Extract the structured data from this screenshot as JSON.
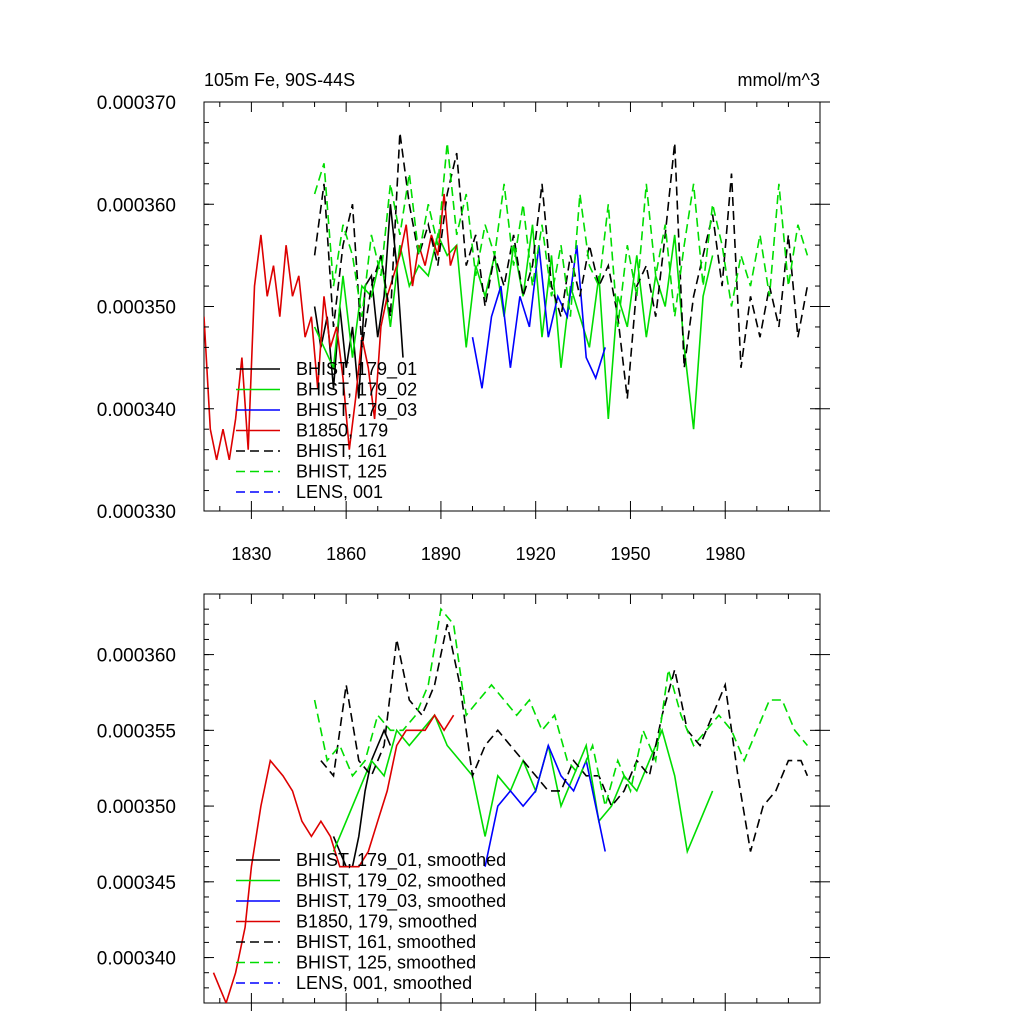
{
  "figure": {
    "background": "#ffffff"
  },
  "chart_data": [
    {
      "type": "line",
      "title": "105m Fe, 90S-44S",
      "units": "mmol/m^3",
      "xlabel": "",
      "ylabel": "",
      "xlim": [
        1815,
        2010
      ],
      "ylim": [
        0.00033,
        0.00037
      ],
      "xticks": [
        1830,
        1860,
        1890,
        1920,
        1950,
        1980
      ],
      "xtick_labels": [
        "1830",
        "1860",
        "1890",
        "1920",
        "1950",
        "1980"
      ],
      "yticks": [
        0.00033,
        0.00034,
        0.00035,
        0.00036,
        0.00037
      ],
      "ytick_labels": [
        "0.000330",
        "0.000340",
        "0.000350",
        "0.000360",
        "0.000370"
      ],
      "legend_position": "lower-left",
      "series": [
        {
          "name": "BHIST, 179_01",
          "color": "#000000",
          "dash": false,
          "x": [
            1850,
            1852,
            1854,
            1856,
            1858,
            1860,
            1862,
            1864,
            1866,
            1868,
            1870,
            1872,
            1874,
            1876,
            1878
          ],
          "y": [
            0.00035,
            0.000346,
            0.000349,
            0.000342,
            0.00035,
            0.000344,
            0.000348,
            0.000341,
            0.000352,
            0.000353,
            0.000347,
            0.000351,
            0.00036,
            0.000354,
            0.000345
          ]
        },
        {
          "name": "BHIST, 179_02",
          "color": "#00dd00",
          "dash": false,
          "x": [
            1850,
            1853,
            1856,
            1859,
            1862,
            1865,
            1868,
            1871,
            1874,
            1877,
            1880,
            1883,
            1886,
            1889,
            1892,
            1895,
            1898,
            1901,
            1904,
            1907,
            1910,
            1913,
            1916,
            1919,
            1922,
            1925,
            1928,
            1931,
            1934,
            1937,
            1940,
            1943,
            1946,
            1949,
            1952,
            1955,
            1958,
            1961,
            1964,
            1967,
            1970,
            1973,
            1976
          ],
          "y": [
            0.000348,
            0.000346,
            0.000344,
            0.000353,
            0.000345,
            0.000352,
            0.000351,
            0.000355,
            0.000348,
            0.000356,
            0.000352,
            0.000354,
            0.000353,
            0.000357,
            0.000355,
            0.000356,
            0.000346,
            0.000354,
            0.000351,
            0.000355,
            0.000349,
            0.000356,
            0.000351,
            0.000358,
            0.000347,
            0.000355,
            0.000344,
            0.000352,
            0.000349,
            0.000346,
            0.000353,
            0.000339,
            0.000351,
            0.000348,
            0.000355,
            0.000347,
            0.000353,
            0.00035,
            0.000357,
            0.000346,
            0.000338,
            0.000351,
            0.000355
          ]
        },
        {
          "name": "BHIST, 179_03",
          "color": "#0000ff",
          "dash": false,
          "x": [
            1900,
            1903,
            1906,
            1909,
            1912,
            1915,
            1918,
            1921,
            1924,
            1927,
            1930,
            1933,
            1936,
            1939,
            1942
          ],
          "y": [
            0.000347,
            0.000342,
            0.000349,
            0.000352,
            0.000344,
            0.000351,
            0.000348,
            0.000356,
            0.000347,
            0.000351,
            0.000349,
            0.000356,
            0.000345,
            0.000343,
            0.000346
          ]
        },
        {
          "name": "B1850, 179",
          "color": "#dd0000",
          "dash": false,
          "x": [
            1815,
            1817,
            1819,
            1821,
            1823,
            1825,
            1827,
            1829,
            1831,
            1833,
            1835,
            1837,
            1839,
            1841,
            1843,
            1845,
            1847,
            1849,
            1851,
            1853,
            1855,
            1857,
            1859,
            1861,
            1863,
            1865,
            1867,
            1869,
            1871,
            1873,
            1875,
            1877,
            1879,
            1881,
            1883,
            1885,
            1887,
            1889,
            1891,
            1893,
            1895
          ],
          "y": [
            0.000349,
            0.000338,
            0.000335,
            0.000338,
            0.000335,
            0.000339,
            0.000345,
            0.000336,
            0.000352,
            0.000357,
            0.000351,
            0.000354,
            0.000349,
            0.000356,
            0.000351,
            0.000353,
            0.000347,
            0.000349,
            0.000342,
            0.000351,
            0.000346,
            0.000348,
            0.000343,
            0.000336,
            0.000341,
            0.000347,
            0.000344,
            0.000339,
            0.000348,
            0.000351,
            0.000353,
            0.000355,
            0.000358,
            0.000352,
            0.000356,
            0.000354,
            0.000357,
            0.000355,
            0.000361,
            0.000354,
            0.000356
          ]
        },
        {
          "name": "BHIST, 161",
          "color": "#000000",
          "dash": true,
          "x": [
            1850,
            1853,
            1856,
            1859,
            1862,
            1865,
            1868,
            1871,
            1874,
            1877,
            1880,
            1883,
            1886,
            1889,
            1892,
            1895,
            1898,
            1901,
            1904,
            1907,
            1910,
            1913,
            1916,
            1919,
            1922,
            1925,
            1928,
            1931,
            1934,
            1937,
            1940,
            1943,
            1946,
            1949,
            1952,
            1955,
            1958,
            1961,
            1964,
            1967,
            1970,
            1973,
            1976,
            1979,
            1982,
            1985,
            1988,
            1991,
            1994,
            1997,
            2000,
            2003,
            2006
          ],
          "y": [
            0.000355,
            0.000362,
            0.000348,
            0.000356,
            0.00036,
            0.000346,
            0.000352,
            0.000355,
            0.000349,
            0.000367,
            0.00036,
            0.000355,
            0.000358,
            0.000354,
            0.000361,
            0.000365,
            0.000354,
            0.000357,
            0.00035,
            0.000355,
            0.000352,
            0.000357,
            0.000351,
            0.000354,
            0.000362,
            0.000352,
            0.000349,
            0.000355,
            0.000351,
            0.000356,
            0.000352,
            0.000354,
            0.000349,
            0.000341,
            0.000352,
            0.000354,
            0.000349,
            0.000357,
            0.000366,
            0.000344,
            0.000351,
            0.000355,
            0.000359,
            0.000352,
            0.000363,
            0.000344,
            0.000351,
            0.000347,
            0.000352,
            0.000348,
            0.000357,
            0.000347,
            0.000352
          ]
        },
        {
          "name": "BHIST, 125",
          "color": "#00dd00",
          "dash": true,
          "x": [
            1850,
            1853,
            1856,
            1859,
            1862,
            1865,
            1868,
            1871,
            1874,
            1877,
            1880,
            1883,
            1886,
            1889,
            1892,
            1895,
            1898,
            1901,
            1904,
            1907,
            1910,
            1913,
            1916,
            1919,
            1922,
            1925,
            1928,
            1931,
            1934,
            1937,
            1940,
            1943,
            1946,
            1949,
            1952,
            1955,
            1958,
            1961,
            1964,
            1967,
            1970,
            1973,
            1976,
            1979,
            1982,
            1985,
            1988,
            1991,
            1994,
            1997,
            2000,
            2003,
            2006
          ],
          "y": [
            0.000361,
            0.000364,
            0.000352,
            0.000358,
            0.000355,
            0.000349,
            0.000357,
            0.000353,
            0.000362,
            0.000357,
            0.000363,
            0.000355,
            0.00036,
            0.000356,
            0.000366,
            0.000357,
            0.000361,
            0.000353,
            0.000358,
            0.000355,
            0.000362,
            0.000354,
            0.00036,
            0.000352,
            0.000358,
            0.000351,
            0.000356,
            0.000349,
            0.000361,
            0.000354,
            0.000352,
            0.00036,
            0.000348,
            0.000356,
            0.000351,
            0.000362,
            0.000353,
            0.000358,
            0.000349,
            0.000356,
            0.000362,
            0.000352,
            0.00036,
            0.000356,
            0.00035,
            0.000355,
            0.000352,
            0.000357,
            0.000351,
            0.000362,
            0.000352,
            0.000358,
            0.000355
          ]
        },
        {
          "name": "LENS, 001",
          "color": "#0000ff",
          "dash": true,
          "x": [],
          "y": []
        }
      ]
    },
    {
      "type": "line",
      "title": "",
      "xlabel": "",
      "ylabel": "",
      "xlim": [
        1815,
        2010
      ],
      "ylim": [
        0.000337,
        0.000364
      ],
      "xticks": [
        1830,
        1860,
        1890,
        1920,
        1950,
        1980
      ],
      "xtick_labels": [],
      "yticks": [
        0.00034,
        0.000345,
        0.00035,
        0.000355,
        0.00036
      ],
      "ytick_labels": [
        "0.000340",
        "0.000345",
        "0.000350",
        "0.000355",
        "0.000360"
      ],
      "legend_position": "lower-left",
      "series": [
        {
          "name": "BHIST, 179_01, smoothed",
          "color": "#000000",
          "dash": false,
          "x": [
            1856,
            1858,
            1860,
            1862,
            1864,
            1866,
            1868,
            1870,
            1872,
            1874
          ],
          "y": [
            0.000348,
            0.000347,
            0.000346,
            0.000346,
            0.000348,
            0.000351,
            0.000353,
            0.000354,
            0.000355,
            0.000354
          ]
        },
        {
          "name": "BHIST, 179_02, smoothed",
          "color": "#00dd00",
          "dash": false,
          "x": [
            1856,
            1860,
            1864,
            1868,
            1872,
            1876,
            1880,
            1884,
            1888,
            1892,
            1896,
            1900,
            1904,
            1908,
            1912,
            1916,
            1920,
            1924,
            1928,
            1932,
            1936,
            1940,
            1944,
            1948,
            1952,
            1956,
            1960,
            1964,
            1968,
            1972,
            1976
          ],
          "y": [
            0.000347,
            0.000349,
            0.000351,
            0.000353,
            0.000352,
            0.000355,
            0.000354,
            0.000355,
            0.000356,
            0.000354,
            0.000353,
            0.000352,
            0.000348,
            0.000352,
            0.000351,
            0.000353,
            0.000351,
            0.000354,
            0.00035,
            0.000352,
            0.000354,
            0.000349,
            0.00035,
            0.000352,
            0.000351,
            0.000353,
            0.000355,
            0.000352,
            0.000347,
            0.000349,
            0.000351
          ]
        },
        {
          "name": "BHIST, 179_03, smoothed",
          "color": "#0000ff",
          "dash": false,
          "x": [
            1904,
            1908,
            1912,
            1916,
            1920,
            1924,
            1928,
            1932,
            1936,
            1940,
            1942
          ],
          "y": [
            0.000346,
            0.00035,
            0.000351,
            0.00035,
            0.000351,
            0.000354,
            0.000352,
            0.000351,
            0.000353,
            0.000349,
            0.000347
          ]
        },
        {
          "name": "B1850, 179, smoothed",
          "color": "#dd0000",
          "dash": false,
          "x": [
            1818,
            1820,
            1822,
            1825,
            1828,
            1830,
            1833,
            1836,
            1840,
            1843,
            1846,
            1849,
            1852,
            1855,
            1858,
            1861,
            1864,
            1867,
            1870,
            1873,
            1876,
            1879,
            1882,
            1885,
            1888,
            1891,
            1894
          ],
          "y": [
            0.000339,
            0.000338,
            0.000337,
            0.000339,
            0.000342,
            0.000346,
            0.00035,
            0.000353,
            0.000352,
            0.000351,
            0.000349,
            0.000348,
            0.000349,
            0.000348,
            0.000346,
            0.000346,
            0.000346,
            0.000347,
            0.000349,
            0.000351,
            0.000354,
            0.000355,
            0.000355,
            0.000355,
            0.000356,
            0.000355,
            0.000356
          ]
        },
        {
          "name": "BHIST, 161, smoothed",
          "color": "#000000",
          "dash": true,
          "x": [
            1852,
            1856,
            1860,
            1864,
            1868,
            1872,
            1876,
            1880,
            1884,
            1888,
            1892,
            1896,
            1900,
            1904,
            1908,
            1912,
            1916,
            1920,
            1924,
            1928,
            1932,
            1936,
            1940,
            1944,
            1948,
            1952,
            1956,
            1960,
            1964,
            1968,
            1972,
            1976,
            1980,
            1984,
            1988,
            1992,
            1996,
            2000,
            2004,
            2006
          ],
          "y": [
            0.000353,
            0.000352,
            0.000358,
            0.000353,
            0.000352,
            0.000354,
            0.000361,
            0.000357,
            0.000356,
            0.000358,
            0.000362,
            0.000358,
            0.000352,
            0.000354,
            0.000355,
            0.000354,
            0.000353,
            0.000352,
            0.000351,
            0.000351,
            0.000353,
            0.000352,
            0.000352,
            0.00035,
            0.000351,
            0.000353,
            0.000352,
            0.000356,
            0.000359,
            0.000355,
            0.000354,
            0.000356,
            0.000358,
            0.000352,
            0.000347,
            0.00035,
            0.000351,
            0.000353,
            0.000353,
            0.000352
          ]
        },
        {
          "name": "BHIST, 125, smoothed",
          "color": "#00dd00",
          "dash": true,
          "x": [
            1850,
            1854,
            1858,
            1862,
            1866,
            1870,
            1874,
            1878,
            1882,
            1886,
            1890,
            1894,
            1898,
            1902,
            1906,
            1910,
            1914,
            1918,
            1922,
            1926,
            1930,
            1934,
            1938,
            1942,
            1946,
            1950,
            1954,
            1958,
            1962,
            1966,
            1970,
            1974,
            1978,
            1982,
            1986,
            1990,
            1994,
            1998,
            2002,
            2006
          ],
          "y": [
            0.000357,
            0.000353,
            0.000354,
            0.000352,
            0.000353,
            0.000356,
            0.000355,
            0.000355,
            0.000356,
            0.000358,
            0.000363,
            0.000362,
            0.000356,
            0.000357,
            0.000358,
            0.000357,
            0.000356,
            0.000357,
            0.000355,
            0.000356,
            0.000353,
            0.000352,
            0.000354,
            0.00035,
            0.000353,
            0.000351,
            0.000355,
            0.000353,
            0.000359,
            0.000356,
            0.000354,
            0.000355,
            0.000356,
            0.000355,
            0.000353,
            0.000355,
            0.000357,
            0.000357,
            0.000355,
            0.000354
          ]
        },
        {
          "name": "LENS, 001, smoothed",
          "color": "#0000ff",
          "dash": true,
          "x": [],
          "y": []
        }
      ]
    }
  ]
}
